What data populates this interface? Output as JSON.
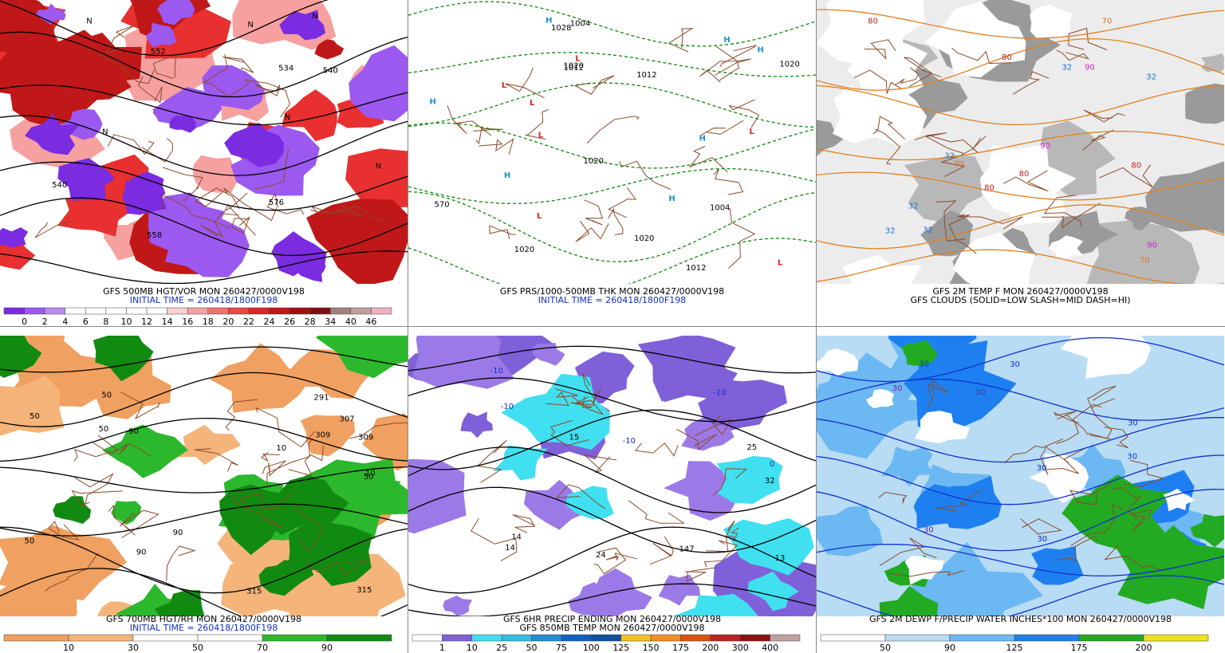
{
  "panels": [
    {
      "captions": [
        "GFS 500MB HGT/VOR MON 260427/0000V198",
        "INITIAL TIME = 260418/1800F198"
      ],
      "colorbar": {
        "colors": [
          "#7b2be0",
          "#9b59f0",
          "#b88cf5",
          "#ffffff",
          "#ffffff",
          "#ffffff",
          "#ffffff",
          "#ffffff",
          "#fbd0d0",
          "#f7a0a0",
          "#f07070",
          "#e84848",
          "#d82828",
          "#c01818",
          "#a01010",
          "#801010",
          "#a08080",
          "#c0a0a0",
          "#f0b0c0"
        ],
        "labels": [
          "0",
          "2",
          "4",
          "6",
          "8",
          "10",
          "12",
          "14",
          "16",
          "18",
          "20",
          "22",
          "24",
          "26",
          "28",
          "34",
          "40",
          "46"
        ]
      },
      "label_groups": [
        {
          "color": "#000000",
          "labels": [
            "534",
            "552",
            "540",
            "558",
            "576",
            "540"
          ]
        },
        {
          "color": "#000000",
          "labels": [
            "N",
            "N",
            "N",
            "N",
            "N",
            "N"
          ]
        }
      ]
    },
    {
      "captions": [
        "GFS PRS/1000-500MB THK MON 260427/0000V198",
        "INITIAL TIME = 260418/1800F198"
      ],
      "label_groups": [
        {
          "color": "#000000",
          "labels": [
            "1020",
            "1028",
            "1012",
            "1020",
            "1020",
            "1012",
            "1004",
            "1004",
            "1012",
            "1020",
            "1020",
            "570"
          ]
        },
        {
          "color": "#1890d0",
          "labels": [
            "H",
            "H",
            "H",
            "H",
            "H",
            "H",
            "H"
          ]
        },
        {
          "color": "#e02020",
          "labels": [
            "L",
            "L",
            "L",
            "L",
            "L",
            "L",
            "L"
          ]
        }
      ]
    },
    {
      "captions": [
        "GFS 2M TEMP F MON 260427/0000V198",
        "GFS CLOUDS (SOLID=LOW SLASH=MID DASH=HI)"
      ],
      "label_groups": [
        {
          "color": "#1070e0",
          "labels": [
            "32",
            "32",
            "32",
            "32",
            "32",
            "32"
          ]
        },
        {
          "color": "#e07020",
          "labels": [
            "70",
            "70",
            "70"
          ]
        },
        {
          "color": "#c02020",
          "labels": [
            "80",
            "80",
            "80",
            "80",
            "80"
          ]
        },
        {
          "color": "#d020d0",
          "labels": [
            "90",
            "90",
            "90"
          ]
        }
      ]
    },
    {
      "captions": [
        "GFS 700MB HGT/RH MON 260427/0000V198",
        "INITIAL TIME = 260418/1800F198"
      ],
      "colorbar": {
        "colors": [
          "#f0a060",
          "#f5b47a",
          "#ffffff",
          "#ffffff",
          "#2cb82c",
          "#118a11"
        ],
        "labels": [
          "10",
          "30",
          "50",
          "70",
          "90"
        ]
      },
      "label_groups": [
        {
          "color": "#000000",
          "labels": [
            "309",
            "291",
            "307",
            "315",
            "315",
            "309"
          ]
        },
        {
          "color": "#000000",
          "labels": [
            "10",
            "50",
            "50",
            "90",
            "90",
            "50",
            "10",
            "50",
            "50",
            "90"
          ]
        }
      ]
    },
    {
      "captions": [
        "GFS 6HR PRECIP ENDING MON 260427/0000V198",
        "GFS 850MB TEMP MON 260427/0000V198"
      ],
      "colorbar": {
        "colors": [
          "#ffffff",
          "#8060d8",
          "#40e0f0",
          "#30c0e0",
          "#2090d0",
          "#1060c0",
          "#1050a0",
          "#f0c020",
          "#f09020",
          "#e05010",
          "#c02020",
          "#901010",
          "#c0a0a0"
        ],
        "labels": [
          "1",
          "10",
          "25",
          "50",
          "75",
          "100",
          "125",
          "150",
          "175",
          "200",
          "300",
          "400"
        ]
      },
      "label_groups": [
        {
          "color": "#1030c0",
          "labels": [
            "-10",
            "-10",
            "-10",
            "-10",
            "0"
          ]
        },
        {
          "color": "#000000",
          "labels": [
            "15",
            "14",
            "24",
            "25",
            "13",
            "14",
            "32",
            "147"
          ]
        }
      ]
    },
    {
      "captions": [
        "GFS 2M DEWP F/PRECIP WATER INCHES*100 MON 260427/0000V198"
      ],
      "colorbar": {
        "colors": [
          "#ffffff",
          "#b8dcf4",
          "#6cb8f2",
          "#1e80f0",
          "#22aa22",
          "#f0e020"
        ],
        "labels": [
          "50",
          "90",
          "125",
          "175",
          "200"
        ]
      },
      "label_groups": [
        {
          "color": "#1030d0",
          "labels": [
            "30",
            "30",
            "30",
            "30",
            "30",
            "30"
          ]
        },
        {
          "color": "#7020a0",
          "labels": [
            "30",
            "30",
            "30"
          ]
        }
      ]
    }
  ]
}
